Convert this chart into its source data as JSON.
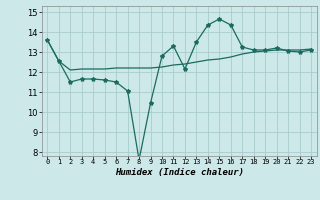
{
  "xlabel": "Humidex (Indice chaleur)",
  "bg_color": "#cde8e8",
  "grid_color": "#aacccc",
  "line_color": "#1a6b60",
  "x": [
    0,
    1,
    2,
    3,
    4,
    5,
    6,
    7,
    8,
    9,
    10,
    11,
    12,
    13,
    14,
    15,
    16,
    17,
    18,
    19,
    20,
    21,
    22,
    23
  ],
  "line1": [
    13.6,
    12.55,
    11.5,
    11.65,
    11.65,
    11.6,
    11.5,
    11.05,
    7.6,
    10.45,
    12.8,
    13.3,
    12.15,
    13.5,
    14.35,
    14.65,
    14.35,
    13.25,
    13.1,
    13.1,
    13.2,
    13.05,
    13.0,
    13.1
  ],
  "line2": [
    13.6,
    12.55,
    12.1,
    12.15,
    12.15,
    12.15,
    12.2,
    12.2,
    12.2,
    12.2,
    12.25,
    12.35,
    12.4,
    12.5,
    12.6,
    12.65,
    12.75,
    12.9,
    13.0,
    13.05,
    13.1,
    13.1,
    13.1,
    13.15
  ],
  "ylim": [
    7.8,
    15.3
  ],
  "xlim": [
    -0.5,
    23.5
  ],
  "yticks": [
    8,
    9,
    10,
    11,
    12,
    13,
    14,
    15
  ],
  "xtick_labels": [
    "0",
    "1",
    "2",
    "3",
    "4",
    "5",
    "6",
    "7",
    "8",
    "9",
    "10",
    "11",
    "12",
    "13",
    "14",
    "15",
    "16",
    "17",
    "18",
    "19",
    "20",
    "21",
    "22",
    "23"
  ]
}
